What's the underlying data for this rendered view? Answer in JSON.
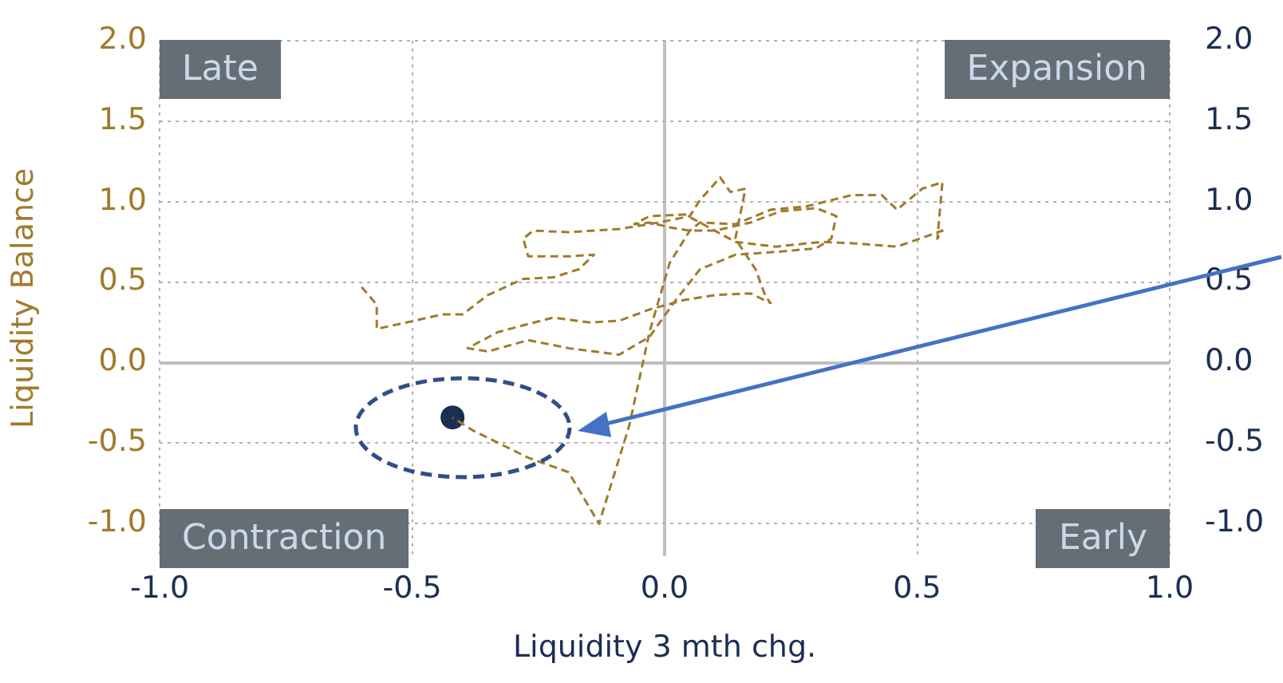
{
  "chart_data": {
    "type": "line",
    "xlabel": "Liquidity 3 mth chg.",
    "ylabel": "Liquidity Balance",
    "xlim": [
      -1,
      1
    ],
    "xticks": [
      {
        "value": -1,
        "label": "-1.0"
      },
      {
        "value": -0.5,
        "label": "-0.5"
      },
      {
        "value": 0,
        "label": "0.0"
      },
      {
        "value": 0.5,
        "label": "0.5"
      },
      {
        "value": 1,
        "label": "1.0"
      }
    ],
    "ylim": [
      -1.2,
      2
    ],
    "yticks": [
      {
        "value": -1,
        "label": "-1.0"
      },
      {
        "value": -0.5,
        "label": "-0.5"
      },
      {
        "value": 0,
        "label": "0.0"
      },
      {
        "value": 0.5,
        "label": "0.5"
      },
      {
        "value": 1,
        "label": "1.0"
      },
      {
        "value": 1.5,
        "label": "1.5"
      },
      {
        "value": 2,
        "label": "2.0"
      }
    ],
    "y2lim": [
      -1.2,
      2
    ],
    "y2ticks": [
      {
        "value": -1,
        "label": "-1.0"
      },
      {
        "value": -0.5,
        "label": "-0.5"
      },
      {
        "value": 0,
        "label": "0.0"
      },
      {
        "value": 0.5,
        "label": "0.5"
      },
      {
        "value": 1,
        "label": "1.0"
      },
      {
        "value": 1.5,
        "label": "1.5"
      },
      {
        "value": 2,
        "label": "2.0"
      }
    ],
    "grid": true,
    "legend": false,
    "annotations": [
      "Late",
      "Expansion",
      "Contraction",
      "Early"
    ],
    "series": [
      {
        "type": "line",
        "color": "#a07b2c",
        "marker": "none",
        "line_style": "dashed",
        "x": [
          -0.6,
          -0.57,
          -0.57,
          -0.51,
          -0.44,
          -0.4,
          -0.35,
          -0.28,
          -0.22,
          -0.17,
          -0.14,
          -0.19,
          -0.27,
          -0.28,
          -0.26,
          -0.19,
          -0.09,
          -0.03,
          0.02,
          0.05,
          0.07,
          0.11,
          0.13,
          0.16,
          0.14,
          0.18,
          0.2,
          0.21,
          0.17,
          0.1,
          0.04,
          -0.03,
          -0.09,
          -0.15,
          -0.22,
          -0.27,
          -0.33,
          -0.39,
          -0.35,
          -0.27,
          -0.19,
          -0.09,
          -0.03,
          0.02,
          0.07,
          0.14,
          0.23,
          0.3,
          0.33,
          0.34,
          0.3,
          0.23,
          0.17,
          0.1,
          0.05,
          0.01,
          -0.03,
          -0.06,
          -0.03,
          0.04,
          0.07,
          0.14,
          0.22,
          0.31,
          0.38,
          0.46,
          0.55,
          0.54,
          0.55,
          0.51,
          0.46,
          0.43,
          0.37,
          0.28,
          0.21,
          0.14,
          0.07,
          0.05,
          0.01,
          -0.03,
          -0.07,
          -0.13,
          -0.19,
          -0.27,
          -0.38,
          -0.42
        ],
        "values": [
          0.47,
          0.36,
          0.21,
          0.25,
          0.3,
          0.3,
          0.42,
          0.52,
          0.53,
          0.58,
          0.67,
          0.66,
          0.66,
          0.77,
          0.82,
          0.81,
          0.83,
          0.86,
          0.89,
          0.91,
          1.01,
          1.15,
          1.06,
          1.08,
          0.77,
          0.58,
          0.41,
          0.37,
          0.43,
          0.42,
          0.39,
          0.33,
          0.26,
          0.25,
          0.28,
          0.24,
          0.19,
          0.09,
          0.07,
          0.14,
          0.09,
          0.05,
          0.16,
          0.38,
          0.58,
          0.67,
          0.69,
          0.71,
          0.77,
          0.91,
          0.96,
          0.94,
          0.87,
          0.82,
          0.82,
          0.84,
          0.87,
          0.86,
          0.91,
          0.92,
          0.87,
          0.75,
          0.72,
          0.75,
          0.74,
          0.72,
          0.82,
          0.77,
          1.12,
          1.08,
          0.95,
          1.04,
          1.04,
          0.97,
          0.95,
          0.86,
          0.87,
          0.82,
          0.62,
          0.19,
          -0.39,
          -1.0,
          -0.68,
          -0.59,
          -0.42,
          -0.34
        ]
      },
      {
        "type": "scatter",
        "color": "#1c2f52",
        "marker": "circle",
        "x": [
          -0.42
        ],
        "values": [
          -0.34
        ]
      }
    ]
  }
}
